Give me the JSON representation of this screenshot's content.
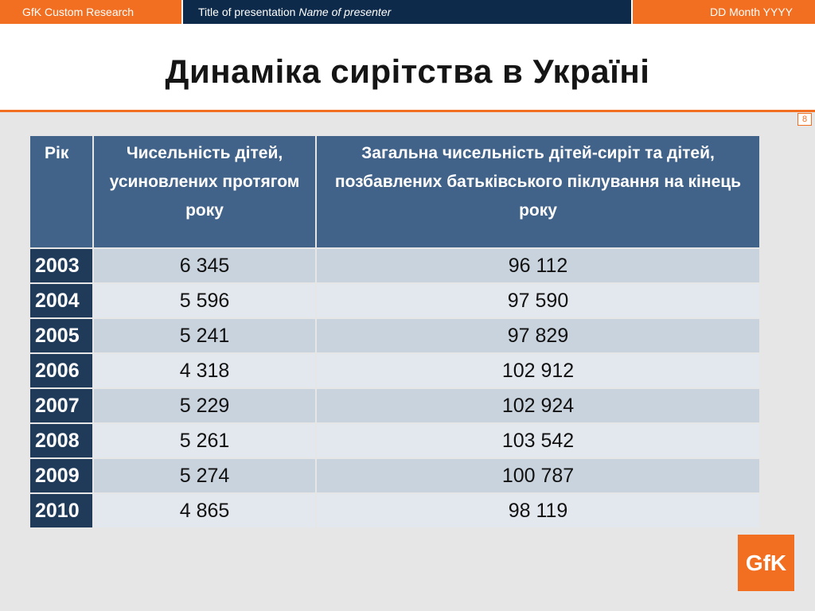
{
  "header": {
    "left": "GfK Custom Research",
    "middle_prefix": "Title of presentation ",
    "middle_italic": "Name of presenter",
    "right": "DD Month YYYY"
  },
  "title": "Динаміка сирітства в Україні",
  "page_number": "8",
  "table": {
    "headers": [
      "Рік",
      "Чисельність дітей, усиновлених протягом року",
      "Загальна чисельність дітей-сиріт та дітей, позбавлених батьківського піклування на кінець року"
    ],
    "rows": [
      {
        "year": "2003",
        "adopted": "6 345",
        "total": "96 112"
      },
      {
        "year": "2004",
        "adopted": "5 596",
        "total": "97 590"
      },
      {
        "year": "2005",
        "adopted": "5 241",
        "total": "97 829"
      },
      {
        "year": "2006",
        "adopted": "4 318",
        "total": "102 912"
      },
      {
        "year": "2007",
        "adopted": "5 229",
        "total": "102 924"
      },
      {
        "year": "2008",
        "adopted": "5 261",
        "total": "103 542"
      },
      {
        "year": "2009",
        "adopted": "5 274",
        "total": "100 787"
      },
      {
        "year": "2010",
        "adopted": "4 865",
        "total": "98 119"
      }
    ]
  },
  "logo": "GfK",
  "colors": {
    "accent": "#f26f21",
    "header_dark": "#0d2a4a",
    "table_header": "#426389",
    "year_cell": "#203a5a",
    "row_odd": "#c9d3de",
    "row_even": "#e3e7ee"
  }
}
